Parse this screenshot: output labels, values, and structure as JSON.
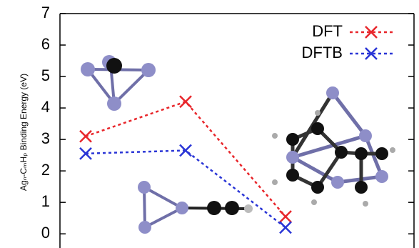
{
  "chart_data": {
    "type": "line",
    "ylabel": "Agₙ-CₘHₚ Binding Energy (eV)",
    "categories": [
      null,
      null,
      null
    ],
    "series": [
      {
        "name": "DFT",
        "color": "#e8262b",
        "values": [
          3.1,
          4.2,
          0.55
        ]
      },
      {
        "name": "DFTB",
        "color": "#2a35d6",
        "values": [
          2.55,
          2.65,
          0.2
        ]
      }
    ],
    "ylim": [
      -0.45,
      7
    ],
    "yticks": [
      0,
      1,
      2,
      3,
      4,
      5,
      6,
      7
    ],
    "legend": "upper right"
  }
}
